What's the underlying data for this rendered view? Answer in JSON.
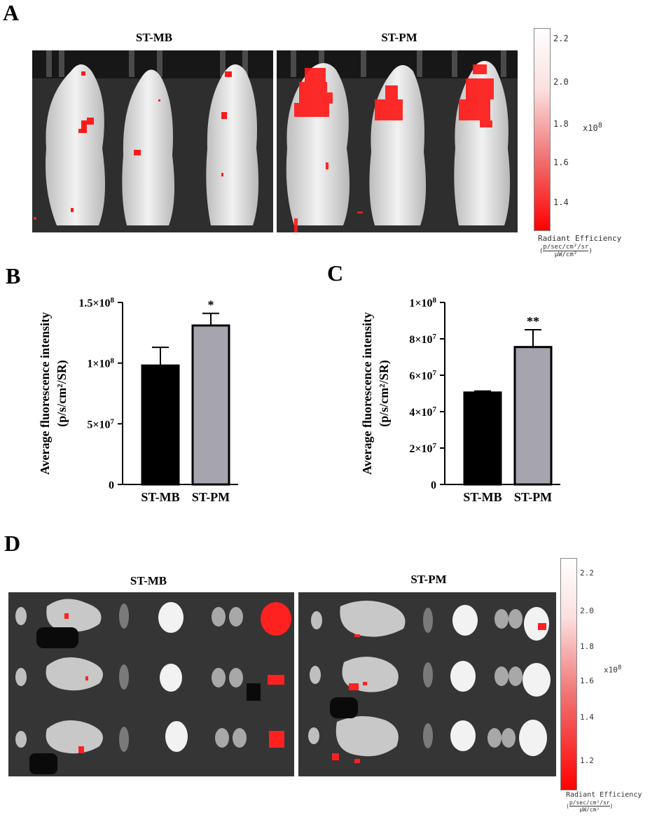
{
  "panels": {
    "A": {
      "letter": "A",
      "groups": [
        "ST-MB",
        "ST-PM"
      ],
      "scale": {
        "ticks": [
          "2.2",
          "2.0",
          "1.8",
          "1.6",
          "1.4"
        ],
        "multiplier": "x10",
        "multiplier_exp": "8",
        "label": "Radiant Efficiency",
        "unit_num": "p/sec/cm²/sr",
        "unit_den": "μW/cm²"
      }
    },
    "B": {
      "letter": "B"
    },
    "C": {
      "letter": "C"
    },
    "D": {
      "letter": "D",
      "groups": [
        "ST-MB",
        "ST-PM"
      ],
      "scale": {
        "ticks": [
          "2.2",
          "2.0",
          "1.8",
          "1.6",
          "1.4",
          "1.2"
        ],
        "multiplier": "x10",
        "multiplier_exp": "8",
        "label": "Radiant Efficiency",
        "unit_num": "p/sec/cm²/sr",
        "unit_den": "μW/cm²"
      }
    }
  },
  "colors": {
    "bar_mb": "#000000",
    "bar_pm": "#a6a5ad",
    "signal": "#ff1a1a"
  },
  "chart_data": [
    {
      "panel": "B",
      "type": "bar",
      "categories": [
        "ST-MB",
        "ST-PM"
      ],
      "values": [
        98000000,
        131000000
      ],
      "errors": [
        15000000,
        10000000
      ],
      "significance": [
        "",
        "*"
      ],
      "ylabel_line1": "Average fluorescence intensity",
      "ylabel_line2": "(p/s/cm²/SR)",
      "ylim": [
        0,
        150000000
      ],
      "yticks": [
        {
          "value": 0,
          "label": "0"
        },
        {
          "value": 50000000,
          "label": "5×10"
        },
        {
          "value": 100000000,
          "label": "1×10"
        },
        {
          "value": 150000000,
          "label": "1.5×10"
        }
      ],
      "ytick_exps": [
        "",
        "7",
        "8",
        "8"
      ]
    },
    {
      "panel": "C",
      "type": "bar",
      "categories": [
        "ST-MB",
        "ST-PM"
      ],
      "values": [
        50500000,
        75500000
      ],
      "errors": [
        800000,
        9500000
      ],
      "significance": [
        "",
        "**"
      ],
      "ylabel_line1": "Average fluorescence intensity",
      "ylabel_line2": "(p/s/cm²/SR)",
      "ylim": [
        0,
        100000000
      ],
      "yticks": [
        {
          "value": 0,
          "label": "0"
        },
        {
          "value": 20000000,
          "label": "2×10"
        },
        {
          "value": 40000000,
          "label": "4×10"
        },
        {
          "value": 60000000,
          "label": "6×10"
        },
        {
          "value": 80000000,
          "label": "8×10"
        },
        {
          "value": 100000000,
          "label": "1×10"
        }
      ],
      "ytick_exps": [
        "",
        "7",
        "7",
        "7",
        "7",
        "8"
      ]
    }
  ]
}
